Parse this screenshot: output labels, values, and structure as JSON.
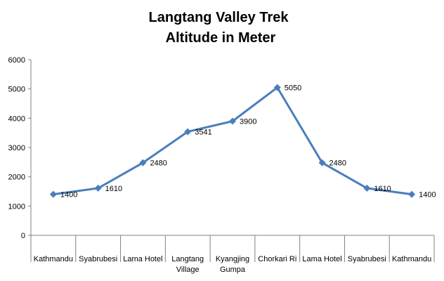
{
  "chart_data": {
    "type": "line",
    "title": "Langtang Valley Trek",
    "subtitle": "Altitude in Meter",
    "xlabel": "",
    "ylabel": "",
    "ylim": [
      0,
      6000
    ],
    "y_ticks": [
      "0",
      "1000",
      "2000",
      "3000",
      "4000",
      "5000",
      "6000"
    ],
    "grid": false,
    "legend": "none",
    "categories": [
      [
        "Kathmandu"
      ],
      [
        "Syabrubesi"
      ],
      [
        "Lama Hotel"
      ],
      [
        "Langtang",
        "Village"
      ],
      [
        "Kyangjing",
        "Gumpa"
      ],
      [
        "Chorkari Ri"
      ],
      [
        "Lama Hotel"
      ],
      [
        "Syabrubesi"
      ],
      [
        "Kathmandu"
      ]
    ],
    "series": [
      {
        "values": [
          1400,
          1610,
          2480,
          3541,
          3900,
          5050,
          2480,
          1610,
          1400
        ],
        "labels": [
          "1400",
          "1610",
          "2480",
          "3541",
          "3900",
          "5050",
          "2480",
          "1610",
          "1400"
        ],
        "color": "#4a7ebb"
      }
    ]
  }
}
